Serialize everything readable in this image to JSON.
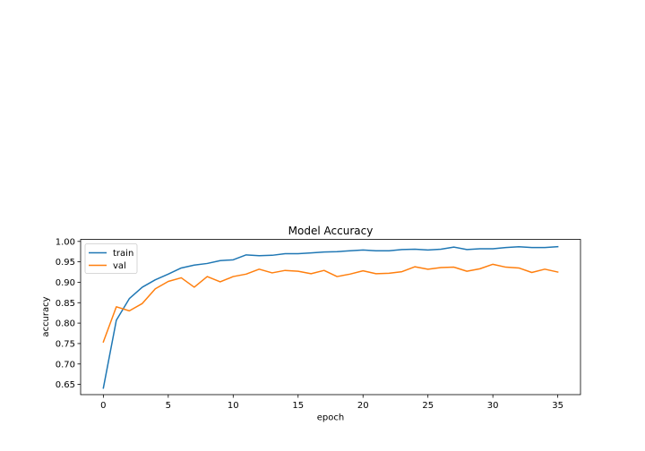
{
  "chart_data": {
    "type": "line",
    "title": "Model Accuracy",
    "xlabel": "epoch",
    "ylabel": "accuracy",
    "xlim": [
      -1.75,
      36.75
    ],
    "ylim": [
      0.625,
      1.005
    ],
    "xticks": [
      0,
      5,
      10,
      15,
      20,
      25,
      30,
      35
    ],
    "yticks": [
      0.65,
      0.7,
      0.75,
      0.8,
      0.85,
      0.9,
      0.95,
      1.0
    ],
    "xtick_labels": [
      "0",
      "5",
      "10",
      "15",
      "20",
      "25",
      "30",
      "35"
    ],
    "ytick_labels": [
      "0.65",
      "0.70",
      "0.75",
      "0.80",
      "0.85",
      "0.90",
      "0.95",
      "1.00"
    ],
    "grid": false,
    "legend_location": "upper-left",
    "x": [
      0,
      1,
      2,
      3,
      4,
      5,
      6,
      7,
      8,
      9,
      10,
      11,
      12,
      13,
      14,
      15,
      16,
      17,
      18,
      19,
      20,
      21,
      22,
      23,
      24,
      25,
      26,
      27,
      28,
      29,
      30,
      31,
      32,
      33,
      34,
      35
    ],
    "series": [
      {
        "name": "train",
        "color": "#1f77b4",
        "values": [
          0.641,
          0.807,
          0.86,
          0.888,
          0.906,
          0.92,
          0.935,
          0.942,
          0.946,
          0.953,
          0.955,
          0.967,
          0.965,
          0.966,
          0.97,
          0.97,
          0.972,
          0.974,
          0.975,
          0.977,
          0.979,
          0.977,
          0.977,
          0.98,
          0.981,
          0.979,
          0.981,
          0.986,
          0.98,
          0.982,
          0.982,
          0.985,
          0.987,
          0.985,
          0.985,
          0.987
        ]
      },
      {
        "name": "val",
        "color": "#ff7f0e",
        "values": [
          0.754,
          0.84,
          0.83,
          0.848,
          0.884,
          0.902,
          0.911,
          0.888,
          0.914,
          0.901,
          0.914,
          0.92,
          0.932,
          0.923,
          0.929,
          0.927,
          0.921,
          0.929,
          0.914,
          0.92,
          0.928,
          0.921,
          0.922,
          0.926,
          0.938,
          0.932,
          0.936,
          0.937,
          0.927,
          0.933,
          0.944,
          0.937,
          0.935,
          0.924,
          0.932,
          0.925
        ]
      }
    ]
  }
}
